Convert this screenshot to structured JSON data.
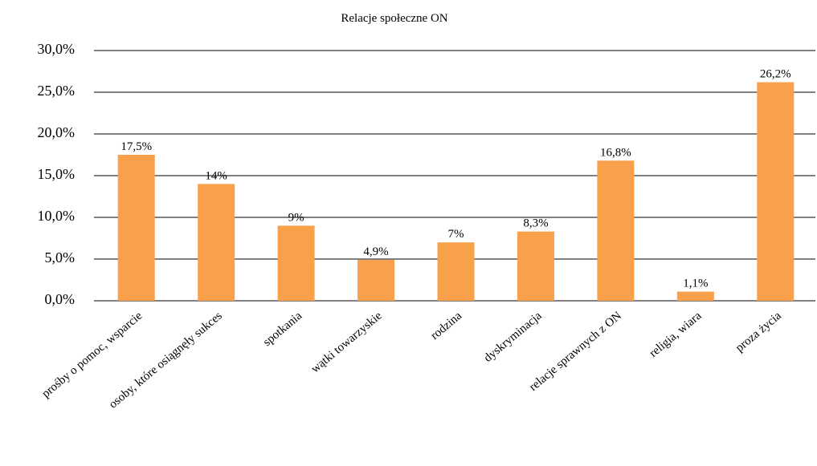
{
  "chart_data": {
    "type": "bar",
    "title": "Relacje społeczne ON",
    "categories": [
      "prośby o pomoc, wsparcie",
      "osoby, które osiągnęły sukces",
      "spotkania",
      "wątki towarzyskie",
      "rodzina",
      "dyskryminacja",
      "relacje sprawnych z ON",
      "religia, wiara",
      "proza życia"
    ],
    "values": [
      17.5,
      14,
      9,
      4.9,
      7,
      8.3,
      16.8,
      1.1,
      26.2
    ],
    "value_labels": [
      "17,5%",
      "14%",
      "9%",
      "4,9%",
      "7%",
      "8,3%",
      "16,8%",
      "1,1%",
      "26,2%"
    ],
    "color": "#f9a04b",
    "ylim": [
      0,
      30
    ],
    "yticks": [
      {
        "value": 0,
        "label": "0,0%"
      },
      {
        "value": 5,
        "label": "5,0%"
      },
      {
        "value": 10,
        "label": "10,0%"
      },
      {
        "value": 15,
        "label": "15,0%"
      },
      {
        "value": 20,
        "label": "20,0%"
      },
      {
        "value": 25,
        "label": "25,0%"
      },
      {
        "value": 30,
        "label": "30,0%"
      }
    ],
    "grid": true
  }
}
